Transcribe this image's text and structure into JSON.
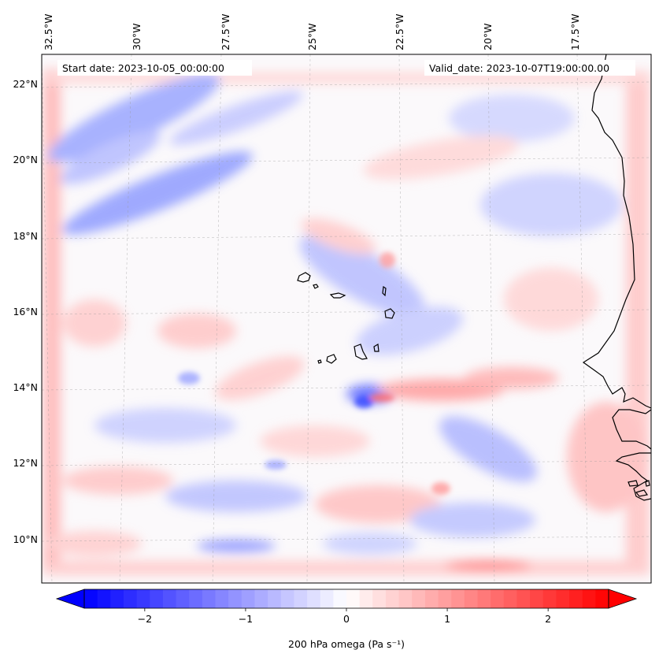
{
  "map": {
    "start_date": "Start date: 2023-10-05_00:00:00",
    "valid_date": "Valid_date: 2023-10-07T19:00:00.00",
    "lon_labels": [
      "32.5°W",
      "30°W",
      "27.5°W",
      "25°W",
      "22.5°W",
      "20°W",
      "17.5°W"
    ],
    "lat_labels": [
      "22°N",
      "20°N",
      "18°N",
      "16°N",
      "14°N",
      "12°N",
      "10°N"
    ],
    "field": "200 hPa omega",
    "gridlines": true,
    "gridline_style": "dashed"
  },
  "colorbar": {
    "label": "200 hPa omega (Pa s⁻¹)",
    "ticks": [
      "−2",
      "−1",
      "0",
      "1",
      "2"
    ],
    "tick_values": [
      -2,
      -1,
      0,
      1,
      2
    ],
    "range": [
      -2.6,
      2.6
    ],
    "colormap": "bwr",
    "extend": "both",
    "low_color": "#0000ff",
    "mid_color": "#ffffff",
    "high_color": "#ff0000"
  }
}
